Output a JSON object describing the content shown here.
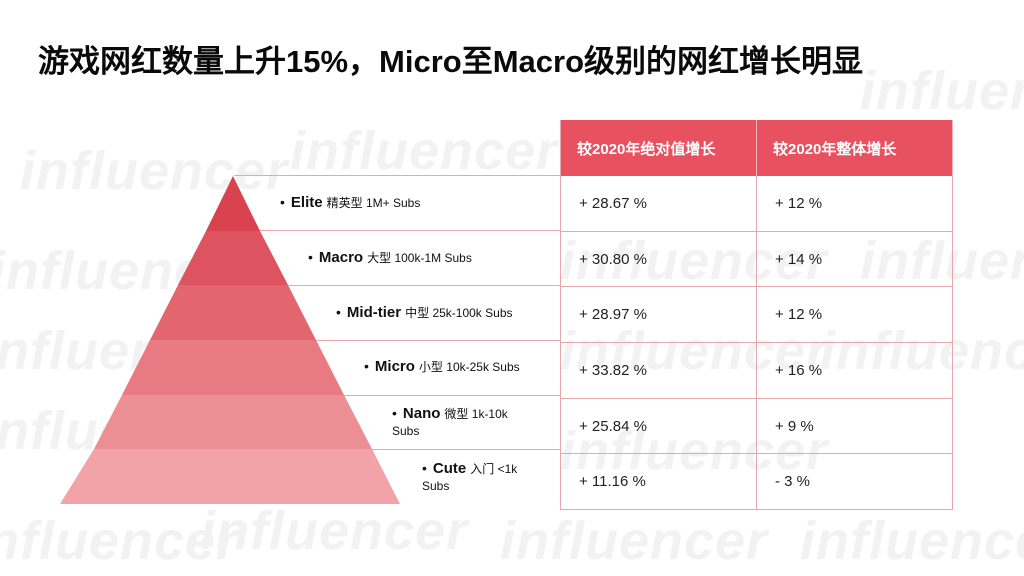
{
  "title": "游戏网红数量上升15%，Micro至Macro级别的网红增长明显",
  "watermark": "influencer",
  "table": {
    "headers": [
      "较2020年绝对值增长",
      "较2020年整体增长"
    ],
    "rows": [
      [
        "+ 28.67 %",
        "+ 12 %"
      ],
      [
        "+ 30.80 %",
        "+ 14 %"
      ],
      [
        "+ 28.97 %",
        "+ 12 %"
      ],
      [
        "+ 33.82 %",
        "+ 16 %"
      ],
      [
        "+ 25.84 %",
        "+ 9 %"
      ],
      [
        "+ 11.16 %",
        "- 3 %"
      ]
    ]
  },
  "tiers": [
    {
      "name": "Elite",
      "cn": "精英型",
      "range": "1M+ Subs",
      "color": "#d9424f"
    },
    {
      "name": "Macro",
      "cn": "大型",
      "range": "100k-1M Subs",
      "color": "#de5360"
    },
    {
      "name": "Mid-tier",
      "cn": "中型",
      "range": "25k-100k Subs",
      "color": "#e3666f"
    },
    {
      "name": "Micro",
      "cn": "小型",
      "range": "10k-25k Subs",
      "color": "#e77a82"
    },
    {
      "name": "Nano",
      "cn": "微型",
      "range": "1k-10k Subs",
      "color": "#ec8f95"
    },
    {
      "name": "Cute",
      "cn": "入门",
      "range": "<1k Subs",
      "color": "#f1a3a8"
    }
  ]
}
